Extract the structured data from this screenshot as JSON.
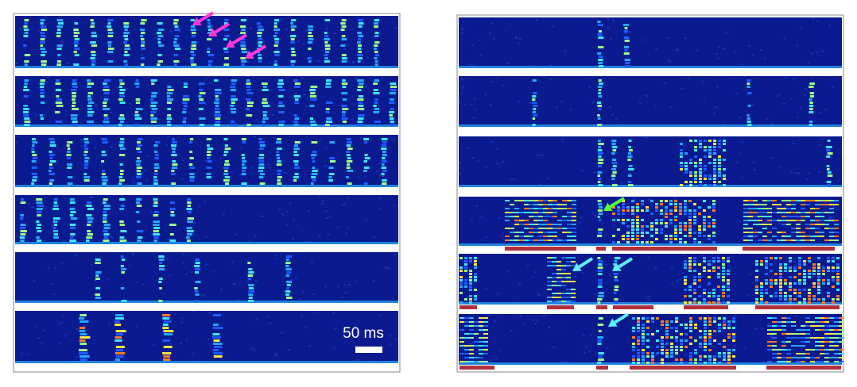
{
  "scale_bar": {
    "label": "50 ms"
  }
}
